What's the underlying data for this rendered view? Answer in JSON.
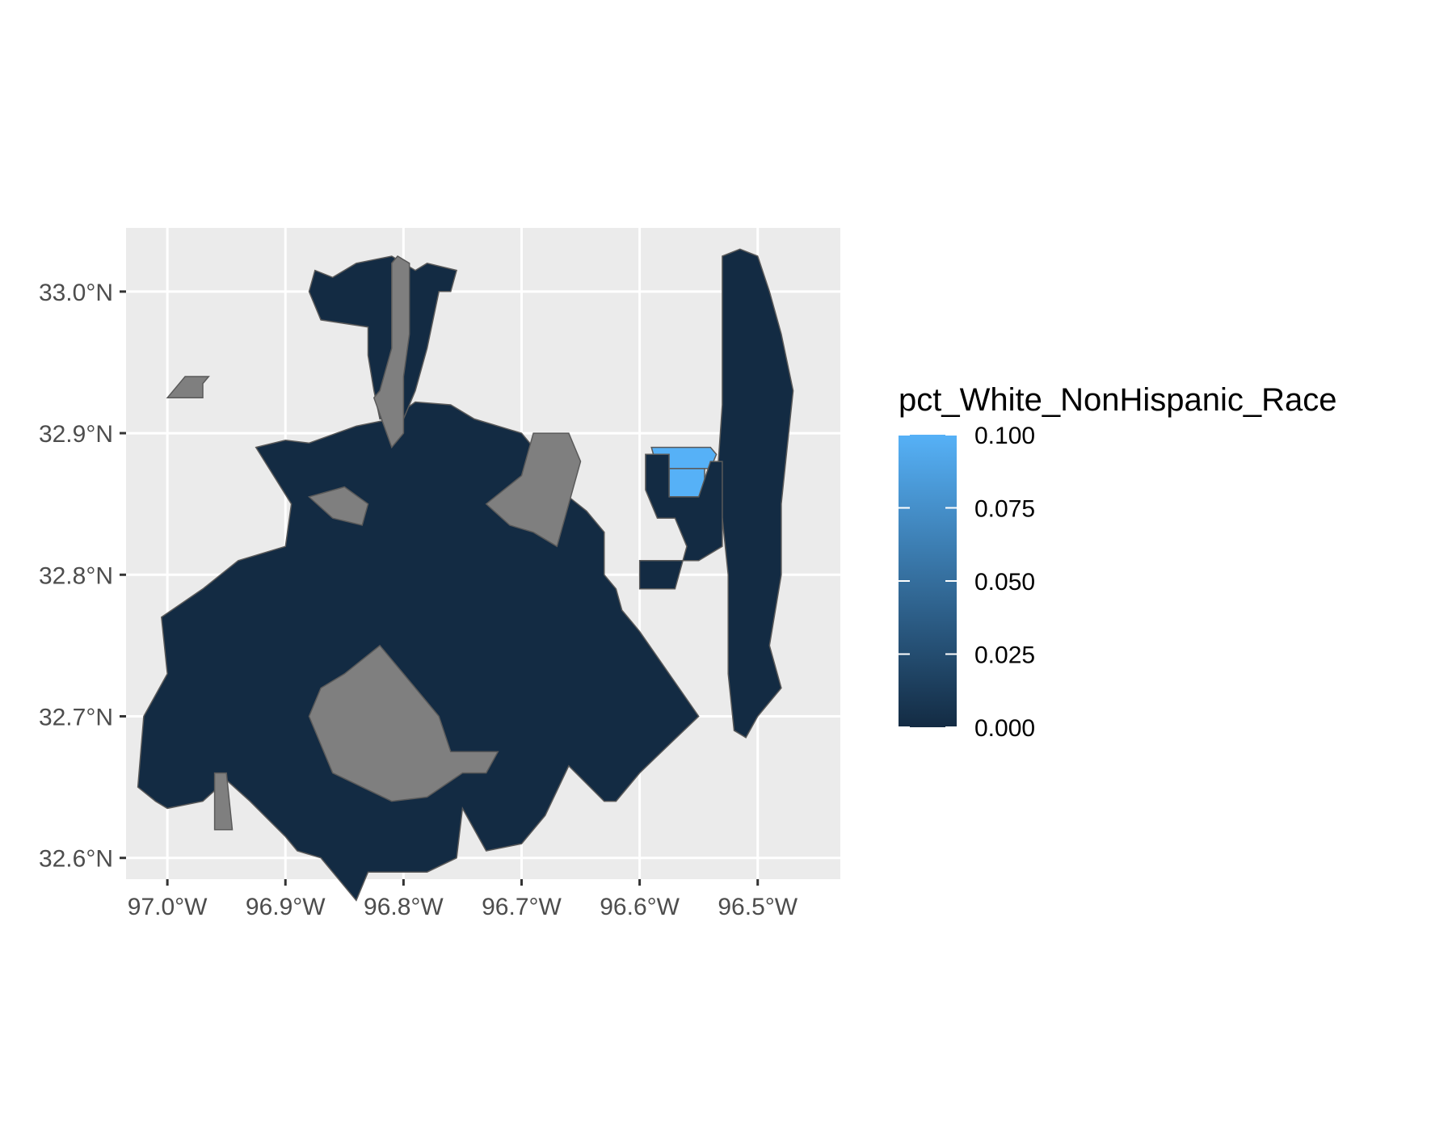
{
  "chart_data": {
    "type": "choropleth",
    "title": "",
    "xlabel": "",
    "ylabel": "",
    "xlim": [
      -97.035,
      -96.43
    ],
    "ylim": [
      32.585,
      33.045
    ],
    "x_ticks": [
      {
        "value": -97.0,
        "label": "97.0°W"
      },
      {
        "value": -96.9,
        "label": "96.9°W"
      },
      {
        "value": -96.8,
        "label": "96.8°W"
      },
      {
        "value": -96.7,
        "label": "96.7°W"
      },
      {
        "value": -96.6,
        "label": "96.6°W"
      },
      {
        "value": -96.5,
        "label": "96.5°W"
      }
    ],
    "y_ticks": [
      {
        "value": 33.0,
        "label": "33.0°N"
      },
      {
        "value": 32.9,
        "label": "32.9°N"
      },
      {
        "value": 32.8,
        "label": "32.8°N"
      },
      {
        "value": 32.7,
        "label": "32.7°N"
      },
      {
        "value": 32.6,
        "label": "32.6°N"
      }
    ],
    "grid": true,
    "legend": {
      "title": "pct_White_NonHispanic_Race",
      "position": "right",
      "range": [
        0.0,
        0.1
      ],
      "low_color": "#132B43",
      "high_color": "#56B1F7",
      "ticks": [
        {
          "value": 0.1,
          "label": "0.100"
        },
        {
          "value": 0.075,
          "label": "0.075"
        },
        {
          "value": 0.05,
          "label": "0.050"
        },
        {
          "value": 0.025,
          "label": "0.025"
        },
        {
          "value": 0.0,
          "label": "0.000"
        }
      ]
    },
    "na_color": "#7f7f7f",
    "regions": [
      {
        "name": "core",
        "value": 0.0,
        "coords": [
          [
            -96.88,
            32.893
          ],
          [
            -96.84,
            32.905
          ],
          [
            -96.81,
            32.91
          ],
          [
            -96.79,
            32.922
          ],
          [
            -96.76,
            32.92
          ],
          [
            -96.74,
            32.91
          ],
          [
            -96.7,
            32.9
          ],
          [
            -96.68,
            32.88
          ],
          [
            -96.66,
            32.855
          ],
          [
            -96.645,
            32.845
          ],
          [
            -96.63,
            32.83
          ],
          [
            -96.63,
            32.8
          ],
          [
            -96.62,
            32.79
          ],
          [
            -96.615,
            32.775
          ],
          [
            -96.6,
            32.76
          ],
          [
            -96.55,
            32.7
          ],
          [
            -96.575,
            32.68
          ],
          [
            -96.6,
            32.66
          ],
          [
            -96.62,
            32.64
          ],
          [
            -96.63,
            32.64
          ],
          [
            -96.66,
            32.665
          ],
          [
            -96.68,
            32.63
          ],
          [
            -96.7,
            32.61
          ],
          [
            -96.73,
            32.605
          ],
          [
            -96.75,
            32.635
          ],
          [
            -96.755,
            32.6
          ],
          [
            -96.78,
            32.59
          ],
          [
            -96.83,
            32.59
          ],
          [
            -96.84,
            32.57
          ],
          [
            -96.87,
            32.6
          ],
          [
            -96.89,
            32.605
          ],
          [
            -96.9,
            32.615
          ],
          [
            -96.93,
            32.64
          ],
          [
            -96.95,
            32.655
          ],
          [
            -96.97,
            32.64
          ],
          [
            -97.0,
            32.635
          ],
          [
            -97.01,
            32.64
          ],
          [
            -97.025,
            32.65
          ],
          [
            -97.02,
            32.7
          ],
          [
            -97.0,
            32.73
          ],
          [
            -97.005,
            32.77
          ],
          [
            -96.97,
            32.79
          ],
          [
            -96.94,
            32.81
          ],
          [
            -96.9,
            32.82
          ],
          [
            -96.895,
            32.85
          ],
          [
            -96.91,
            32.87
          ],
          [
            -96.925,
            32.89
          ],
          [
            -96.9,
            32.895
          ]
        ]
      },
      {
        "name": "north_stem",
        "value": 0.0,
        "coords": [
          [
            -96.8,
            32.91
          ],
          [
            -96.79,
            32.93
          ],
          [
            -96.78,
            32.96
          ],
          [
            -96.775,
            32.98
          ],
          [
            -96.77,
            33.0
          ],
          [
            -96.76,
            33.0
          ],
          [
            -96.755,
            33.015
          ],
          [
            -96.78,
            33.02
          ],
          [
            -96.79,
            33.015
          ],
          [
            -96.8,
            33.02
          ],
          [
            -96.81,
            33.025
          ],
          [
            -96.84,
            33.02
          ],
          [
            -96.86,
            33.01
          ],
          [
            -96.875,
            33.015
          ],
          [
            -96.88,
            33.0
          ],
          [
            -96.87,
            32.98
          ],
          [
            -96.83,
            32.975
          ],
          [
            -96.83,
            32.955
          ],
          [
            -96.825,
            32.93
          ],
          [
            -96.82,
            32.91
          ]
        ]
      },
      {
        "name": "east_strip",
        "value": 0.0,
        "coords": [
          [
            -96.53,
            33.025
          ],
          [
            -96.515,
            33.03
          ],
          [
            -96.5,
            33.025
          ],
          [
            -96.49,
            33.0
          ],
          [
            -96.48,
            32.97
          ],
          [
            -96.47,
            32.93
          ],
          [
            -96.475,
            32.89
          ],
          [
            -96.48,
            32.85
          ],
          [
            -96.48,
            32.8
          ],
          [
            -96.49,
            32.75
          ],
          [
            -96.48,
            32.72
          ],
          [
            -96.5,
            32.7
          ],
          [
            -96.51,
            32.685
          ],
          [
            -96.52,
            32.69
          ],
          [
            -96.525,
            32.73
          ],
          [
            -96.525,
            32.77
          ],
          [
            -96.525,
            32.8
          ],
          [
            -96.53,
            32.84
          ],
          [
            -96.535,
            32.86
          ],
          [
            -96.53,
            32.92
          ],
          [
            -96.53,
            33.0
          ]
        ]
      },
      {
        "name": "west_island",
        "value": null,
        "coords": [
          [
            -97.0,
            32.925
          ],
          [
            -96.985,
            32.94
          ],
          [
            -96.965,
            32.94
          ],
          [
            -96.97,
            32.935
          ],
          [
            -96.97,
            32.925
          ]
        ]
      },
      {
        "name": "na_north",
        "value": null,
        "coords": [
          [
            -96.795,
            33.02
          ],
          [
            -96.805,
            33.025
          ],
          [
            -96.81,
            33.02
          ],
          [
            -96.81,
            32.96
          ],
          [
            -96.82,
            32.93
          ],
          [
            -96.825,
            32.925
          ],
          [
            -96.81,
            32.89
          ],
          [
            -96.8,
            32.9
          ],
          [
            -96.8,
            32.94
          ],
          [
            -96.795,
            32.97
          ]
        ]
      },
      {
        "name": "na_northeast",
        "value": null,
        "coords": [
          [
            -96.73,
            32.85
          ],
          [
            -96.7,
            32.87
          ],
          [
            -96.69,
            32.9
          ],
          [
            -96.66,
            32.9
          ],
          [
            -96.65,
            32.88
          ],
          [
            -96.66,
            32.85
          ],
          [
            -96.67,
            32.82
          ],
          [
            -96.69,
            32.83
          ],
          [
            -96.71,
            32.835
          ]
        ]
      },
      {
        "name": "na_southwest",
        "value": null,
        "coords": [
          [
            -96.88,
            32.7
          ],
          [
            -96.86,
            32.66
          ],
          [
            -96.81,
            32.64
          ],
          [
            -96.78,
            32.643
          ],
          [
            -96.75,
            32.66
          ],
          [
            -96.73,
            32.66
          ],
          [
            -96.72,
            32.675
          ],
          [
            -96.76,
            32.675
          ],
          [
            -96.77,
            32.7
          ],
          [
            -96.8,
            32.73
          ],
          [
            -96.82,
            32.75
          ],
          [
            -96.85,
            32.73
          ],
          [
            -96.87,
            32.72
          ]
        ]
      },
      {
        "name": "na_small_1",
        "value": null,
        "coords": [
          [
            -96.88,
            32.855
          ],
          [
            -96.85,
            32.862
          ],
          [
            -96.83,
            32.85
          ],
          [
            -96.835,
            32.835
          ],
          [
            -96.86,
            32.84
          ]
        ]
      },
      {
        "name": "na_small_2",
        "value": null,
        "coords": [
          [
            -96.96,
            32.66
          ],
          [
            -96.95,
            32.66
          ],
          [
            -96.945,
            32.62
          ],
          [
            -96.96,
            32.62
          ]
        ]
      },
      {
        "name": "highlight_1",
        "value": 0.1,
        "coords": [
          [
            -96.59,
            32.89
          ],
          [
            -96.54,
            32.89
          ],
          [
            -96.535,
            32.885
          ],
          [
            -96.54,
            32.875
          ],
          [
            -96.585,
            32.875
          ]
        ]
      },
      {
        "name": "highlight_2",
        "value": 0.1,
        "coords": [
          [
            -96.575,
            32.875
          ],
          [
            -96.545,
            32.875
          ],
          [
            -96.545,
            32.855
          ],
          [
            -96.575,
            32.855
          ]
        ]
      },
      {
        "name": "east_block",
        "value": 0.0,
        "coords": [
          [
            -96.595,
            32.885
          ],
          [
            -96.575,
            32.885
          ],
          [
            -96.575,
            32.855
          ],
          [
            -96.55,
            32.855
          ],
          [
            -96.54,
            32.88
          ],
          [
            -96.53,
            32.88
          ],
          [
            -96.53,
            32.82
          ],
          [
            -96.55,
            32.81
          ],
          [
            -96.6,
            32.81
          ],
          [
            -96.6,
            32.79
          ],
          [
            -96.57,
            32.79
          ],
          [
            -96.56,
            32.82
          ],
          [
            -96.57,
            32.84
          ],
          [
            -96.585,
            32.84
          ],
          [
            -96.595,
            32.86
          ]
        ]
      }
    ]
  }
}
